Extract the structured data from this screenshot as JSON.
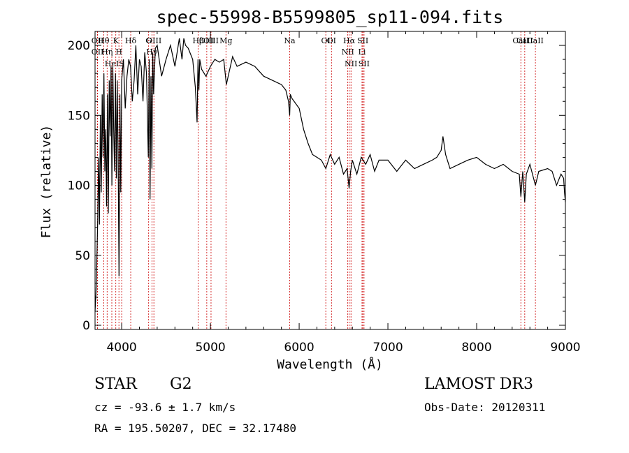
{
  "chart_data": {
    "type": "line",
    "title": "spec-55998-B5599805_sp11-094.fits",
    "xlabel": "Wavelength (Å)",
    "ylabel": "Flux (relative)",
    "xlim": [
      3700,
      9000
    ],
    "ylim": [
      -3,
      210
    ],
    "x_ticks": [
      4000,
      5000,
      6000,
      7000,
      8000,
      9000
    ],
    "y_ticks": [
      0,
      50,
      100,
      150,
      200
    ],
    "series": [
      {
        "x": [
          3700,
          3710,
          3720,
          3730,
          3740,
          3750,
          3760,
          3770,
          3780,
          3790,
          3800,
          3810,
          3820,
          3830,
          3840,
          3850,
          3860,
          3870,
          3880,
          3890,
          3900,
          3910,
          3920,
          3930,
          3940,
          3950,
          3960,
          3970,
          3980,
          3990,
          4000,
          4020,
          4040,
          4060,
          4080,
          4100,
          4120,
          4140,
          4160,
          4180,
          4200,
          4220,
          4240,
          4260,
          4280,
          4300,
          4310,
          4320,
          4330,
          4340,
          4350,
          4360,
          4380,
          4400,
          4450,
          4500,
          4550,
          4600,
          4650,
          4680,
          4700,
          4720,
          4750,
          4800,
          4830,
          4850,
          4860,
          4870,
          4880,
          4900,
          4950,
          5000,
          5050,
          5100,
          5150,
          5180,
          5200,
          5250,
          5300,
          5400,
          5500,
          5600,
          5700,
          5800,
          5850,
          5880,
          5893,
          5900,
          5920,
          6000,
          6050,
          6100,
          6150,
          6200,
          6250,
          6300,
          6350,
          6400,
          6450,
          6500,
          6540,
          6563,
          6580,
          6600,
          6650,
          6700,
          6750,
          6800,
          6850,
          6900,
          7000,
          7100,
          7200,
          7300,
          7400,
          7500,
          7550,
          7600,
          7620,
          7650,
          7700,
          7800,
          7900,
          8000,
          8100,
          8200,
          8300,
          8400,
          8480,
          8498,
          8520,
          8542,
          8560,
          8600,
          8662,
          8700,
          8800,
          8850,
          8900,
          8950,
          8980,
          8990,
          9000
        ],
        "y": [
          10,
          22,
          45,
          75,
          120,
          72,
          150,
          95,
          165,
          120,
          180,
          110,
          140,
          85,
          165,
          80,
          175,
          135,
          185,
          100,
          185,
          140,
          110,
          180,
          105,
          175,
          122,
          35,
          165,
          95,
          175,
          190,
          155,
          178,
          190,
          185,
          160,
          175,
          200,
          165,
          190,
          185,
          160,
          195,
          180,
          120,
          190,
          90,
          178,
          112,
          195,
          165,
          198,
          200,
          178,
          190,
          200,
          185,
          205,
          190,
          205,
          200,
          198,
          190,
          170,
          145,
          190,
          168,
          190,
          183,
          178,
          185,
          190,
          188,
          190,
          172,
          178,
          192,
          185,
          188,
          185,
          178,
          175,
          172,
          168,
          160,
          150,
          165,
          162,
          155,
          140,
          130,
          122,
          120,
          118,
          112,
          122,
          115,
          120,
          108,
          112,
          98,
          110,
          118,
          108,
          120,
          115,
          122,
          110,
          118,
          118,
          110,
          118,
          112,
          115,
          118,
          120,
          125,
          135,
          122,
          112,
          115,
          118,
          120,
          115,
          112,
          115,
          110,
          108,
          92,
          110,
          88,
          108,
          115,
          100,
          110,
          112,
          110,
          100,
          108,
          105,
          95,
          88
        ]
      }
    ],
    "line_markers": [
      {
        "label": "Hθ",
        "x": 3798
      },
      {
        "label": "OII",
        "x": 3728
      },
      {
        "label": "OII",
        "x": 3728
      },
      {
        "label": "Hη",
        "x": 3836
      },
      {
        "label": "K",
        "x": 3934
      },
      {
        "label": "H",
        "x": 3969
      },
      {
        "label": "HeI",
        "x": 3889
      },
      {
        "label": "S",
        "x": 4000
      },
      {
        "label": "Hδ",
        "x": 4102
      },
      {
        "label": "OIII",
        "x": 4363
      },
      {
        "label": "Hγ",
        "x": 4341
      },
      {
        "label": "G",
        "x": 4304
      },
      {
        "label": "OIII",
        "x": 5007
      },
      {
        "label": "OIII",
        "x": 4959
      },
      {
        "label": "Hβ",
        "x": 4861
      },
      {
        "label": "Mg",
        "x": 5175
      },
      {
        "label": "Na",
        "x": 5893
      },
      {
        "label": "OI",
        "x": 6300
      },
      {
        "label": "OI",
        "x": 6364
      },
      {
        "label": "Hα",
        "x": 6563
      },
      {
        "label": "NII",
        "x": 6548
      },
      {
        "label": "NII",
        "x": 6584
      },
      {
        "label": "SII",
        "x": 6717
      },
      {
        "label": "Li",
        "x": 6708
      },
      {
        "label": "SII",
        "x": 6731
      },
      {
        "label": "CaII",
        "x": 8542
      },
      {
        "label": "CaII",
        "x": 8498
      },
      {
        "label": "CaII",
        "x": 8662
      }
    ]
  },
  "info": {
    "object_class": "STAR",
    "subclass": "G2",
    "survey": "LAMOST DR3",
    "cz": "cz = -93.6 ± 1.7 km/s",
    "obs_date": "Obs-Date: 20120311",
    "coords": "RA = 195.50207, DEC =  32.17480"
  },
  "colors": {
    "line_marker": "#cc0000",
    "spectrum": "#000000"
  }
}
